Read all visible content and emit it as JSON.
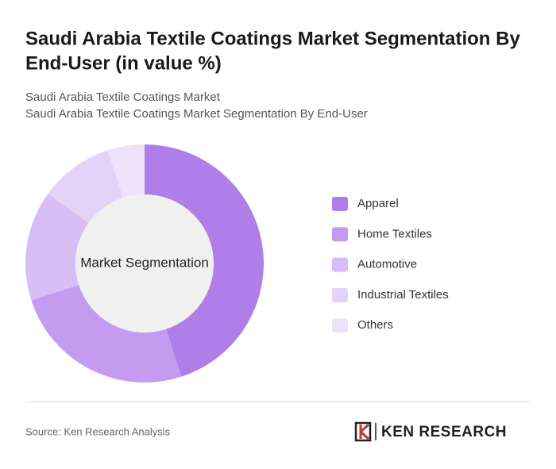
{
  "chart_data": {
    "type": "donut",
    "title": [
      "Saudi Arabia Textile Coatings Market Segmentation By",
      "End-User (in value %)"
    ],
    "subtitle": [
      "Saudi Arabia Textile Coatings Market",
      "Saudi Arabia Textile Coatings Market Segmentation By End-User"
    ],
    "center_label": "Market Segmentation",
    "categories": [
      "Apparel",
      "Home Textiles",
      "Automotive",
      "Industrial Textiles",
      "Others"
    ],
    "values": [
      45,
      25,
      15,
      10,
      5
    ],
    "colors": [
      "#b07ee8",
      "#c39cf0",
      "#d7bff5",
      "#e3d3f8",
      "#ece2fa"
    ]
  },
  "footer": {
    "source": "Source: Ken Research Analysis",
    "logo": "KEN RESEARCH"
  }
}
